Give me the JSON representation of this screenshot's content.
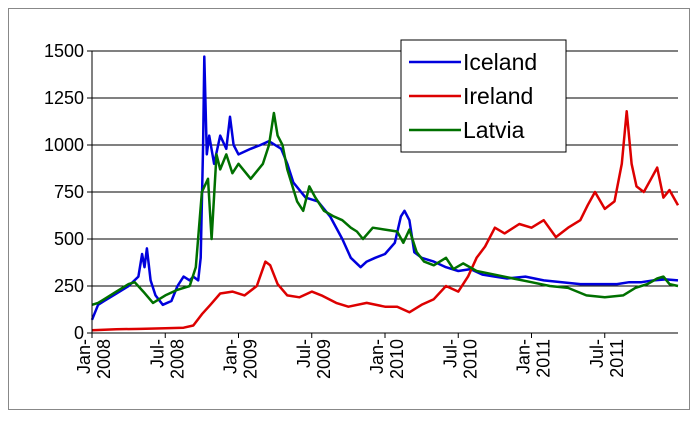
{
  "chart_data": {
    "type": "line",
    "xlim": [
      0,
      48
    ],
    "xticks": [
      {
        "value": 0,
        "label": "Jan-2008"
      },
      {
        "value": 6,
        "label": "Jul-2008"
      },
      {
        "value": 12,
        "label": "Jan-2009"
      },
      {
        "value": 18,
        "label": "Jul-2009"
      },
      {
        "value": 24,
        "label": "Jan-2010"
      },
      {
        "value": 30,
        "label": "Jul-2010"
      },
      {
        "value": 36,
        "label": "Jan-2011"
      },
      {
        "value": 42,
        "label": "Jul-2011"
      }
    ],
    "ylim": [
      0,
      1500
    ],
    "yticks": [
      0,
      250,
      500,
      750,
      1000,
      1250,
      1500
    ],
    "grid": true,
    "legend": "top-right",
    "series": [
      {
        "name": "Iceland",
        "color": "#0000dd",
        "x": [
          0,
          0.5,
          1,
          2,
          3,
          3.8,
          4.1,
          4.3,
          4.5,
          4.8,
          5.2,
          5.8,
          6.5,
          7,
          7.5,
          8,
          8.3,
          8.7,
          8.9,
          9.1,
          9.2,
          9.4,
          9.6,
          10,
          10.5,
          11,
          11.3,
          11.6,
          12,
          13,
          13.8,
          14.5,
          15.5,
          16,
          16.5,
          17.5,
          18.5,
          19.5,
          20.5,
          21.2,
          22,
          22.5,
          23.2,
          24,
          24.8,
          25.3,
          25.6,
          26,
          26.4,
          27,
          28,
          29,
          30,
          31,
          32,
          33,
          34,
          35.5,
          37,
          38.5,
          40,
          41.5,
          43,
          44,
          45,
          46,
          47,
          48
        ],
        "values": [
          70,
          150,
          170,
          210,
          250,
          300,
          420,
          350,
          450,
          280,
          200,
          150,
          170,
          250,
          300,
          280,
          300,
          280,
          400,
          1000,
          1470,
          950,
          1050,
          900,
          1050,
          980,
          1150,
          1000,
          950,
          980,
          1000,
          1020,
          980,
          900,
          800,
          720,
          700,
          620,
          500,
          400,
          350,
          380,
          400,
          420,
          480,
          620,
          650,
          600,
          430,
          400,
          380,
          350,
          330,
          340,
          310,
          300,
          290,
          300,
          280,
          270,
          260,
          260,
          260,
          270,
          270,
          280,
          285,
          280
        ]
      },
      {
        "name": "Ireland",
        "color": "#dd0000",
        "x": [
          0,
          2,
          4,
          6,
          7.5,
          8.3,
          9,
          9.7,
          10.5,
          11.5,
          12.5,
          13.5,
          14.2,
          14.6,
          15.2,
          16,
          17,
          18,
          18.8,
          20,
          21,
          22.5,
          24,
          25,
          26,
          27,
          28,
          29,
          30,
          30.8,
          31.5,
          32.2,
          33,
          33.8,
          35,
          36,
          37,
          38,
          39,
          40,
          40.6,
          41.2,
          42,
          42.8,
          43.4,
          43.8,
          44.2,
          44.6,
          45.2,
          45.8,
          46.3,
          46.8,
          47.3,
          48
        ],
        "values": [
          15,
          20,
          22,
          25,
          28,
          40,
          100,
          150,
          210,
          220,
          200,
          250,
          380,
          360,
          260,
          200,
          190,
          220,
          200,
          160,
          140,
          160,
          140,
          140,
          110,
          150,
          180,
          250,
          220,
          300,
          400,
          460,
          560,
          530,
          580,
          560,
          600,
          510,
          560,
          600,
          680,
          750,
          660,
          700,
          900,
          1180,
          900,
          780,
          750,
          820,
          880,
          720,
          760,
          680
        ]
      },
      {
        "name": "Latvia",
        "color": "#007000",
        "x": [
          0,
          0.5,
          1,
          2,
          3,
          3.5,
          4.2,
          5,
          6,
          7,
          8,
          8.5,
          9,
          9.5,
          9.8,
          10.2,
          10.5,
          11,
          11.5,
          12,
          13,
          14,
          14.5,
          14.9,
          15.2,
          15.6,
          16,
          16.8,
          17.3,
          17.8,
          18.3,
          19,
          19.8,
          20.5,
          21.2,
          21.7,
          22.2,
          23,
          24,
          25,
          25.5,
          26,
          26.6,
          27.2,
          28,
          29,
          29.6,
          30.4,
          31.5,
          33,
          34.5,
          36,
          37.5,
          39,
          40.5,
          42,
          43.5,
          44.5,
          45.5,
          46.3,
          46.8,
          47.3,
          48
        ],
        "values": [
          150,
          160,
          180,
          220,
          260,
          270,
          220,
          160,
          200,
          230,
          250,
          350,
          750,
          820,
          500,
          950,
          870,
          950,
          850,
          900,
          820,
          900,
          1000,
          1170,
          1050,
          1000,
          870,
          700,
          650,
          780,
          720,
          650,
          620,
          600,
          560,
          540,
          500,
          560,
          550,
          540,
          480,
          550,
          430,
          380,
          360,
          400,
          340,
          370,
          330,
          310,
          290,
          270,
          250,
          240,
          200,
          190,
          200,
          240,
          260,
          290,
          300,
          260,
          250
        ]
      }
    ]
  }
}
